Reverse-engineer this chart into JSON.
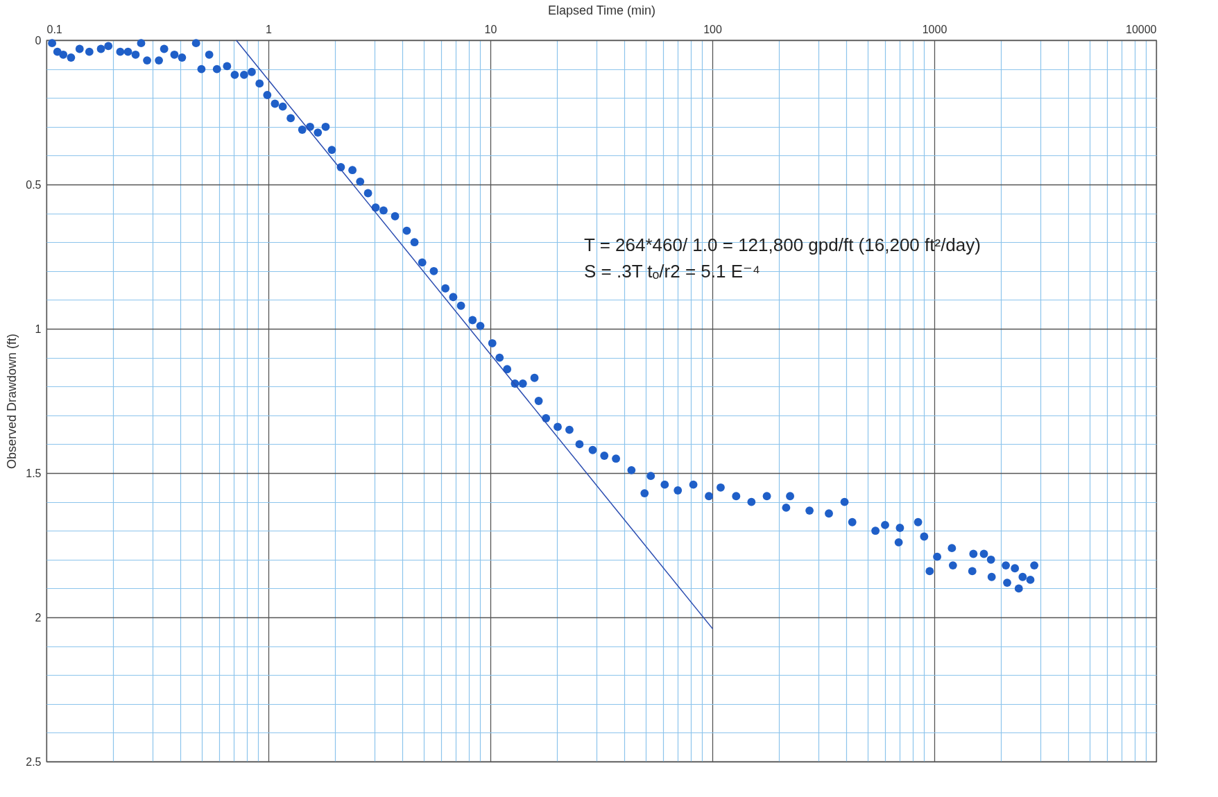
{
  "chart_data": {
    "type": "scatter",
    "xlabel": "Elapsed Time (min)",
    "ylabel": "Observed Drawdown (ft)",
    "log": "x",
    "grid": true,
    "xlim": [
      0.1,
      10000
    ],
    "xticks": [
      0.1,
      {
        "value": 0.2,
        "label": null
      },
      {
        "value": 0.3,
        "label": null
      },
      {
        "value": 0.4,
        "label": null
      },
      {
        "value": 0.5,
        "label": null
      },
      {
        "value": 0.6,
        "label": null
      },
      {
        "value": 0.7,
        "label": null
      },
      {
        "value": 0.8,
        "label": null
      },
      {
        "value": 0.9,
        "label": null
      },
      1,
      {
        "value": 2,
        "label": null
      },
      {
        "value": 3,
        "label": null
      },
      {
        "value": 4,
        "label": null
      },
      {
        "value": 5,
        "label": null
      },
      {
        "value": 6,
        "label": null
      },
      {
        "value": 7,
        "label": null
      },
      {
        "value": 8,
        "label": null
      },
      {
        "value": 9,
        "label": null
      },
      10,
      {
        "value": 20,
        "label": null
      },
      {
        "value": 30,
        "label": null
      },
      {
        "value": 40,
        "label": null
      },
      {
        "value": 50,
        "label": null
      },
      {
        "value": 60,
        "label": null
      },
      {
        "value": 70,
        "label": null
      },
      {
        "value": 80,
        "label": null
      },
      {
        "value": 90,
        "label": null
      },
      100,
      {
        "value": 200,
        "label": null
      },
      {
        "value": 300,
        "label": null
      },
      {
        "value": 400,
        "label": null
      },
      {
        "value": 500,
        "label": null
      },
      {
        "value": 600,
        "label": null
      },
      {
        "value": 700,
        "label": null
      },
      {
        "value": 800,
        "label": null
      },
      {
        "value": 900,
        "label": null
      },
      1000,
      {
        "value": 2000,
        "label": null
      },
      {
        "value": 3000,
        "label": null
      },
      {
        "value": 4000,
        "label": null
      },
      {
        "value": 5000,
        "label": null
      },
      {
        "value": 6000,
        "label": null
      },
      {
        "value": 7000,
        "label": null
      },
      {
        "value": 8000,
        "label": null
      },
      {
        "value": 9000,
        "label": null
      },
      10000
    ],
    "ylim": [
      2.5,
      0
    ],
    "yticks": [
      0,
      {
        "value": 0.1,
        "label": null
      },
      {
        "value": 0.2,
        "label": null
      },
      {
        "value": 0.3,
        "label": null
      },
      {
        "value": 0.4,
        "label": null
      },
      0.5,
      {
        "value": 0.6,
        "label": null
      },
      {
        "value": 0.7,
        "label": null
      },
      {
        "value": 0.8,
        "label": null
      },
      {
        "value": 0.9,
        "label": null
      },
      1,
      {
        "value": 1.1,
        "label": null
      },
      {
        "value": 1.2,
        "label": null
      },
      {
        "value": 1.3,
        "label": null
      },
      {
        "value": 1.4,
        "label": null
      },
      1.5,
      {
        "value": 1.6,
        "label": null
      },
      {
        "value": 1.7,
        "label": null
      },
      {
        "value": 1.8,
        "label": null
      },
      {
        "value": 1.9,
        "label": null
      },
      2,
      {
        "value": 2.1,
        "label": null
      },
      {
        "value": 2.2,
        "label": null
      },
      {
        "value": 2.3,
        "label": null
      },
      {
        "value": 2.4,
        "label": null
      },
      2.5
    ],
    "annotations": [
      "T = 264*460/ 1.0 = 121,800 gpd/ft (16,200 ft²/day)",
      "S = .3T tₒ/r2 =  5.1 E⁻⁴"
    ],
    "series": [
      {
        "marker": "circle",
        "color": "#1f5fc8",
        "x": [
          0.106,
          0.112,
          0.119,
          0.129,
          0.141,
          0.156,
          0.176,
          0.19,
          0.215,
          0.233,
          0.252,
          0.267,
          0.284,
          0.321,
          0.339,
          0.377,
          0.408,
          0.472,
          0.499,
          0.541,
          0.586,
          0.651,
          0.705,
          0.777,
          0.841,
          0.912,
          0.988,
          1.07,
          1.16,
          1.26,
          1.42,
          1.54,
          1.67,
          1.81,
          1.93,
          2.12,
          2.39,
          2.59,
          2.81,
          3.04,
          3.3,
          3.72,
          4.2,
          4.55,
          4.93,
          5.56,
          6.27,
          6.8,
          7.37,
          8.31,
          9.01,
          10.2,
          11,
          11.9,
          12.9,
          14,
          15.8,
          16.5,
          17.8,
          20.1,
          22.7,
          25.2,
          28.9,
          32.6,
          36.8,
          43.2,
          49.5,
          52.8,
          61,
          69.9,
          82.1,
          96.5,
          109,
          128,
          150,
          176,
          215,
          224,
          274,
          335,
          394,
          427,
          543,
          691,
          845,
          953,
          1030,
          1213,
          1483,
          1673,
          1813,
          2129,
          2307,
          2402,
          2709,
          2821,
          1200,
          1500,
          1800,
          2100,
          2500,
          900,
          700,
          600
        ],
        "values": [
          0.01,
          0.04,
          0.05,
          0.06,
          0.03,
          0.04,
          0.03,
          0.02,
          0.04,
          0.04,
          0.05,
          0.01,
          0.07,
          0.07,
          0.03,
          0.05,
          0.06,
          0.01,
          0.1,
          0.05,
          0.1,
          0.09,
          0.12,
          0.12,
          0.11,
          0.15,
          0.19,
          0.22,
          0.23,
          0.27,
          0.31,
          0.3,
          0.32,
          0.3,
          0.38,
          0.44,
          0.45,
          0.49,
          0.53,
          0.58,
          0.59,
          0.61,
          0.66,
          0.7,
          0.77,
          0.8,
          0.86,
          0.89,
          0.92,
          0.97,
          0.99,
          1.05,
          1.1,
          1.14,
          1.19,
          1.19,
          1.17,
          1.25,
          1.31,
          1.34,
          1.35,
          1.4,
          1.42,
          1.44,
          1.45,
          1.49,
          1.57,
          1.51,
          1.54,
          1.56,
          1.54,
          1.58,
          1.55,
          1.58,
          1.6,
          1.58,
          1.62,
          1.58,
          1.63,
          1.64,
          1.6,
          1.67,
          1.7,
          1.74,
          1.67,
          1.84,
          1.79,
          1.82,
          1.84,
          1.78,
          1.86,
          1.88,
          1.83,
          1.9,
          1.87,
          1.82,
          1.76,
          1.78,
          1.8,
          1.82,
          1.86,
          1.72,
          1.69,
          1.68
        ]
      },
      {
        "type": "line",
        "marker": "none",
        "color": "#2a4cb0",
        "x": [
          0.716,
          100.4
        ],
        "values": [
          0,
          2.04
        ]
      }
    ]
  }
}
